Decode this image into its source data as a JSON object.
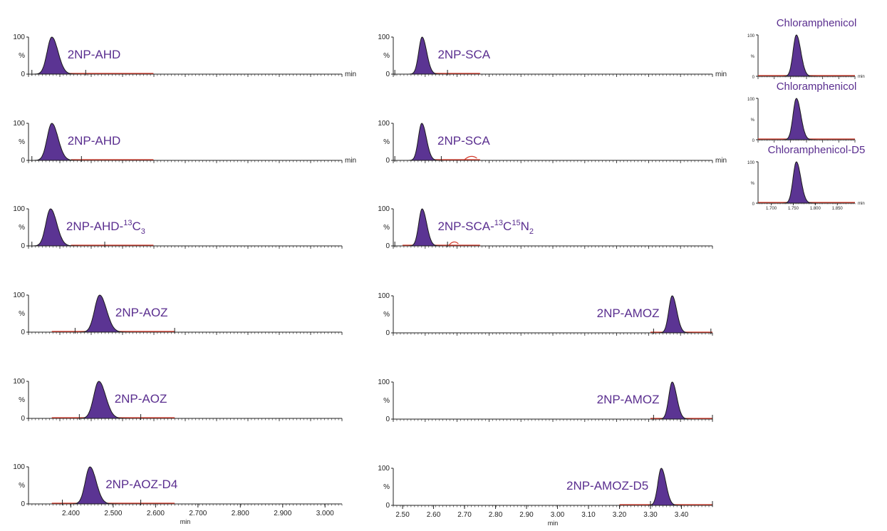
{
  "colors": {
    "peak_fill": "#5b3493",
    "peak_outline": "#1a1a1a",
    "baseline": "#d43a2a",
    "label": "#5a2e8f",
    "axis": "#222222"
  },
  "common": {
    "y_tick_labels": [
      "100",
      "%",
      "0"
    ],
    "unit_label": "min"
  },
  "chart_data": [
    {
      "type": "line",
      "column": "left",
      "row": 0,
      "label": "2NP-AHD",
      "label_sup": "",
      "label_mid": "",
      "label_sup2": "",
      "label_sub": "",
      "show_unit": true,
      "peak": {
        "center": 2.355,
        "sigma": 0.011,
        "height": 100
      },
      "baseline_range": [
        2.355,
        2.595
      ],
      "markers": [
        2.308,
        2.435
      ],
      "noise": [],
      "ylim": [
        0,
        100
      ],
      "xlim": [
        2.3,
        3.04
      ]
    },
    {
      "type": "line",
      "column": "left",
      "row": 1,
      "label": "2NP-AHD",
      "label_sup": "",
      "label_mid": "",
      "label_sup2": "",
      "label_sub": "",
      "show_unit": true,
      "peak": {
        "center": 2.355,
        "sigma": 0.011,
        "height": 100
      },
      "baseline_range": [
        2.4,
        2.595
      ],
      "markers": [
        2.308,
        2.425
      ],
      "noise": [],
      "ylim": [
        0,
        100
      ],
      "xlim": [
        2.3,
        3.04
      ]
    },
    {
      "type": "line",
      "column": "left",
      "row": 2,
      "label": "2NP-AHD-",
      "label_sup": "13",
      "label_mid": "C",
      "label_sup2": "",
      "label_sub": "3",
      "show_unit": false,
      "peak": {
        "center": 2.352,
        "sigma": 0.011,
        "height": 100
      },
      "baseline_range": [
        2.4,
        2.595
      ],
      "markers": [
        2.308,
        2.48
      ],
      "noise": [],
      "ylim": [
        0,
        100
      ],
      "xlim": [
        2.3,
        3.04
      ]
    },
    {
      "type": "line",
      "column": "left",
      "row": 3,
      "label": "2NP-AOZ",
      "label_sup": "",
      "label_mid": "",
      "label_sup2": "",
      "label_sub": "",
      "show_unit": false,
      "peak": {
        "center": 2.468,
        "sigma": 0.012,
        "height": 100
      },
      "baseline_range": [
        2.355,
        2.645
      ],
      "markers": [
        2.41,
        2.645
      ],
      "noise": [],
      "ylim": [
        0,
        100
      ],
      "xlim": [
        2.3,
        3.04
      ]
    },
    {
      "type": "line",
      "column": "left",
      "row": 4,
      "label": "2NP-AOZ",
      "label_sup": "",
      "label_mid": "",
      "label_sup2": "",
      "label_sub": "",
      "show_unit": false,
      "peak": {
        "center": 2.466,
        "sigma": 0.012,
        "height": 100
      },
      "baseline_range": [
        2.355,
        2.645
      ],
      "markers": [
        2.42,
        2.565
      ],
      "noise": [],
      "ylim": [
        0,
        100
      ],
      "xlim": [
        2.3,
        3.04
      ]
    },
    {
      "type": "line",
      "column": "left",
      "row": 5,
      "label": "2NP-AOZ-D4",
      "label_sup": "",
      "label_mid": "",
      "label_sup2": "",
      "label_sub": "",
      "show_unit": false,
      "peak": {
        "center": 2.445,
        "sigma": 0.011,
        "height": 100
      },
      "baseline_range": [
        2.355,
        2.645
      ],
      "markers": [
        2.38,
        2.565
      ],
      "noise": [],
      "ylim": [
        0,
        100
      ],
      "xlim": [
        2.3,
        3.04
      ],
      "x_tick_labels": [
        "2.400",
        "2.500",
        "2.600",
        "2.700",
        "2.800",
        "2.900",
        "3.000"
      ],
      "x_tick_values": [
        2.4,
        2.5,
        2.6,
        2.7,
        2.8,
        2.9,
        3.0
      ],
      "xlabel": "min"
    },
    {
      "type": "line",
      "column": "middle",
      "row": 0,
      "label": "2NP-SCA",
      "label_sup": "",
      "label_mid": "",
      "label_sup2": "",
      "label_sub": "",
      "show_unit": true,
      "peak": {
        "center": 2.563,
        "sigma": 0.011,
        "height": 100
      },
      "baseline_range": [
        2.6,
        2.75
      ],
      "markers": [
        2.475,
        2.645
      ],
      "noise": [],
      "ylim": [
        0,
        100
      ],
      "xlim": [
        2.47,
        3.5
      ]
    },
    {
      "type": "line",
      "column": "middle",
      "row": 1,
      "label": "2NP-SCA",
      "label_sup": "",
      "label_mid": "",
      "label_sup2": "",
      "label_sub": "",
      "show_unit": true,
      "peak": {
        "center": 2.562,
        "sigma": 0.011,
        "height": 100
      },
      "baseline_range": [
        2.6,
        2.75
      ],
      "markers": [
        2.475,
        2.625
      ],
      "noise": [
        2.7,
        2.74
      ],
      "ylim": [
        0,
        100
      ],
      "xlim": [
        2.47,
        3.5
      ]
    },
    {
      "type": "line",
      "column": "middle",
      "row": 2,
      "label": "2NP-SCA-",
      "label_sup": "13",
      "label_mid": "C",
      "label_sup2": "15",
      "label_sub": "2",
      "show_unit": false,
      "peak": {
        "center": 2.563,
        "sigma": 0.011,
        "height": 100
      },
      "baseline_range": [
        2.5,
        2.75
      ],
      "markers": [
        2.475,
        2.645
      ],
      "noise": [
        2.65,
        2.68
      ],
      "ylim": [
        0,
        100
      ],
      "xlim": [
        2.47,
        3.5
      ]
    },
    {
      "type": "line",
      "column": "middle",
      "row": 3,
      "label": "2NP-AMOZ",
      "label_sup": "",
      "label_mid": "",
      "label_sup2": "",
      "label_sub": "",
      "show_unit": false,
      "peak": {
        "center": 3.37,
        "sigma": 0.011,
        "height": 100
      },
      "baseline_range": [
        3.3,
        3.5
      ],
      "markers": [
        3.31,
        3.495
      ],
      "noise": [],
      "ylim": [
        0,
        100
      ],
      "xlim": [
        2.47,
        3.5
      ]
    },
    {
      "type": "line",
      "column": "middle",
      "row": 4,
      "label": "2NP-AMOZ",
      "label_sup": "",
      "label_mid": "",
      "label_sup2": "",
      "label_sub": "",
      "show_unit": false,
      "peak": {
        "center": 3.37,
        "sigma": 0.011,
        "height": 100
      },
      "baseline_range": [
        3.3,
        3.5
      ],
      "markers": [
        3.31,
        3.5
      ],
      "noise": [],
      "ylim": [
        0,
        100
      ],
      "xlim": [
        2.47,
        3.5
      ]
    },
    {
      "type": "line",
      "column": "middle",
      "row": 5,
      "label": "2NP-AMOZ-D5",
      "label_sup": "",
      "label_mid": "",
      "label_sup2": "",
      "label_sub": "",
      "show_unit": false,
      "peak": {
        "center": 3.335,
        "sigma": 0.011,
        "height": 100
      },
      "baseline_range": [
        3.2,
        3.5
      ],
      "markers": [
        3.3,
        3.5
      ],
      "noise": [],
      "ylim": [
        0,
        100
      ],
      "xlim": [
        2.47,
        3.5
      ],
      "x_tick_labels": [
        "2.50",
        "2.60",
        "2.70",
        "2.80",
        "2.90",
        "3.00",
        "3.10",
        "3.20",
        "3.30",
        "3.40"
      ],
      "x_tick_values": [
        2.5,
        2.6,
        2.7,
        2.8,
        2.9,
        3.0,
        3.1,
        3.2,
        3.3,
        3.4
      ],
      "xlabel": "min"
    },
    {
      "type": "line",
      "column": "right",
      "row": 0,
      "label": "Chloramphenicol",
      "show_unit": true,
      "peak": {
        "center": 1.757,
        "sigma": 0.0075,
        "height": 100
      },
      "baseline_range": [
        1.67,
        1.89
      ],
      "ylim": [
        0,
        100
      ],
      "xlim": [
        1.67,
        1.89
      ]
    },
    {
      "type": "line",
      "column": "right",
      "row": 1,
      "label": "Chloramphenicol",
      "show_unit": false,
      "peak": {
        "center": 1.757,
        "sigma": 0.0075,
        "height": 100
      },
      "baseline_range": [
        1.67,
        1.89
      ],
      "ylim": [
        0,
        100
      ],
      "xlim": [
        1.67,
        1.89
      ]
    },
    {
      "type": "line",
      "column": "right",
      "row": 2,
      "label": "Chloramphenicol-D5",
      "show_unit": true,
      "peak": {
        "center": 1.757,
        "sigma": 0.0075,
        "height": 100
      },
      "baseline_range": [
        1.67,
        1.89
      ],
      "ylim": [
        0,
        100
      ],
      "xlim": [
        1.67,
        1.89
      ],
      "x_tick_labels": [
        "1.700",
        "1.750",
        "1.800",
        "1.850"
      ],
      "x_tick_values": [
        1.7,
        1.75,
        1.8,
        1.85
      ]
    }
  ]
}
